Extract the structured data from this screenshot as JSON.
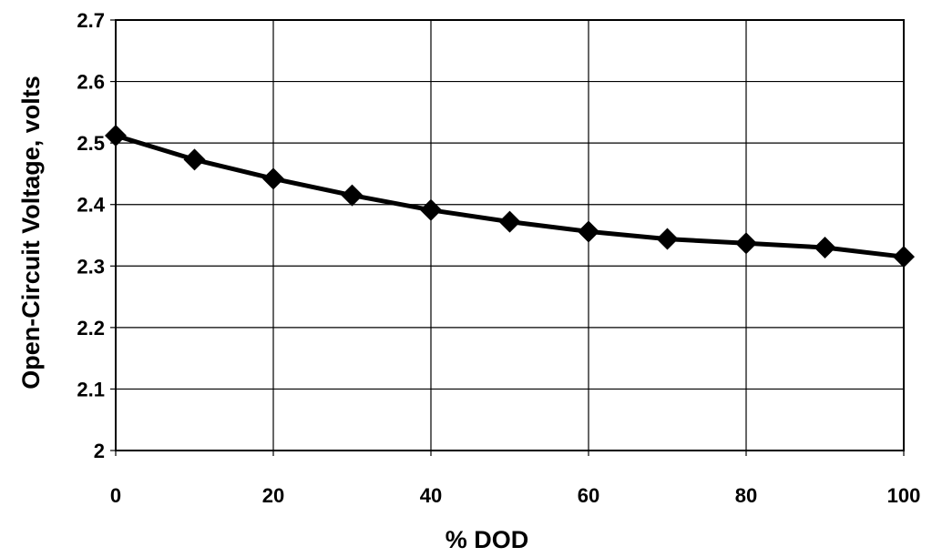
{
  "chart_data": {
    "type": "line",
    "title": "",
    "xlabel": "% DOD",
    "ylabel": "Open-Circuit Voltage, volts",
    "xlim": [
      0,
      100
    ],
    "ylim": [
      2,
      2.7
    ],
    "x_ticks": [
      "0",
      "20",
      "40",
      "60",
      "80",
      "100"
    ],
    "y_ticks": [
      "2",
      "2.1",
      "2.2",
      "2.3",
      "2.4",
      "2.5",
      "2.6",
      "2.7"
    ],
    "grid": true,
    "legend": "none",
    "series": [
      {
        "x": [
          0,
          10,
          20,
          30,
          40,
          50,
          60,
          70,
          80,
          90,
          100
        ],
        "values": [
          2.512,
          2.473,
          2.442,
          2.415,
          2.391,
          2.372,
          2.356,
          2.344,
          2.337,
          2.33,
          2.315
        ],
        "color": "#000000",
        "marker": "diamond"
      }
    ]
  }
}
